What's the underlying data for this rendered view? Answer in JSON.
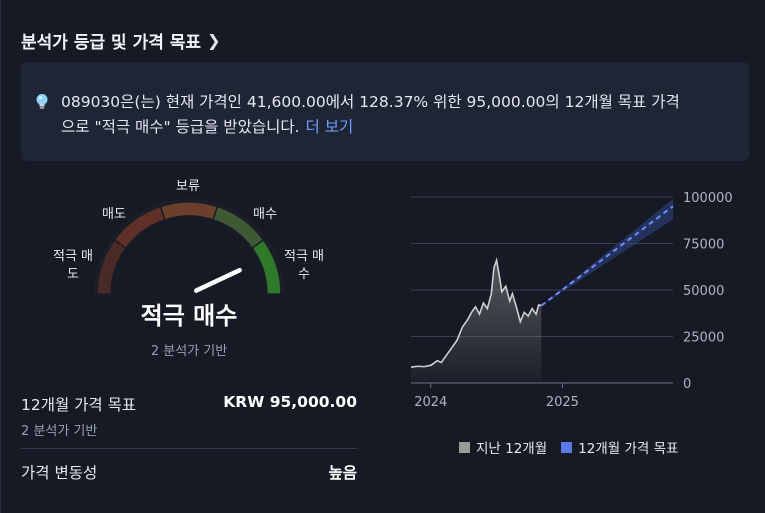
{
  "section": {
    "title": "분석가 등급 및 가격 목표",
    "chevron_icon": "chevron-right-icon"
  },
  "summary": {
    "icon": "lightbulb-icon",
    "line1": "089030은(는) 현재 가격인 41,600.00에서 128.37% 위한 95,000.00의 12개월 목표 가격",
    "line2": "으로 \"적극 매수\" 등급을 받았습니다.",
    "more_link": "더 보기"
  },
  "gauge": {
    "labels": {
      "strong_sell_1": "적극 매",
      "strong_sell_2": "도",
      "sell": "매도",
      "hold": "보류",
      "buy": "매수",
      "strong_buy_1": "적극 매",
      "strong_buy_2": "수"
    },
    "segment_colors": [
      "#4a2a27",
      "#5e3027",
      "#6b3f2c",
      "#3d5a35",
      "#2f7a2a"
    ],
    "needle_value": 0.86
  },
  "rating": {
    "text": "적극 매수",
    "basis": "2 분석가 기반"
  },
  "target": {
    "label": "12개월 가격 목표",
    "value": "KRW 95,000.00",
    "basis": "2 분석가 기반"
  },
  "volatility": {
    "label": "가격 변동성",
    "value": "높음"
  },
  "legend": {
    "past": "지난 12개월",
    "past_color": "#9a9a9a",
    "target": "12개월 가격 목표",
    "target_color": "#5a78e6"
  },
  "chart_data": {
    "type": "line",
    "x_ticks": [
      "2024",
      "2025"
    ],
    "y_ticks": [
      "0",
      "25000",
      "50000",
      "75000",
      "100000"
    ],
    "ylim": [
      0,
      100000
    ],
    "series": [
      {
        "name": "지난 12개월",
        "points": [
          [
            2023.85,
            8500
          ],
          [
            2023.9,
            9000
          ],
          [
            2023.95,
            8800
          ],
          [
            2024.0,
            9500
          ],
          [
            2024.05,
            12000
          ],
          [
            2024.08,
            11000
          ],
          [
            2024.12,
            15000
          ],
          [
            2024.16,
            19000
          ],
          [
            2024.2,
            23000
          ],
          [
            2024.24,
            30000
          ],
          [
            2024.28,
            34000
          ],
          [
            2024.31,
            38000
          ],
          [
            2024.34,
            41000
          ],
          [
            2024.37,
            37000
          ],
          [
            2024.4,
            43000
          ],
          [
            2024.43,
            40000
          ],
          [
            2024.46,
            48000
          ],
          [
            2024.48,
            62000
          ],
          [
            2024.5,
            66000
          ],
          [
            2024.52,
            58000
          ],
          [
            2024.54,
            49000
          ],
          [
            2024.57,
            52000
          ],
          [
            2024.6,
            44000
          ],
          [
            2024.62,
            48000
          ],
          [
            2024.65,
            41000
          ],
          [
            2024.68,
            33000
          ],
          [
            2024.71,
            38000
          ],
          [
            2024.74,
            36000
          ],
          [
            2024.77,
            40000
          ],
          [
            2024.8,
            37000
          ],
          [
            2024.82,
            42000
          ],
          [
            2024.84,
            41600
          ]
        ]
      },
      {
        "name": "12개월 가격 목표",
        "points": [
          [
            2024.84,
            41600
          ],
          [
            2025.84,
            95000
          ]
        ],
        "band": [
          [
            2024.84,
            41600,
            41600
          ],
          [
            2025.84,
            88000,
            99000
          ]
        ]
      }
    ]
  }
}
